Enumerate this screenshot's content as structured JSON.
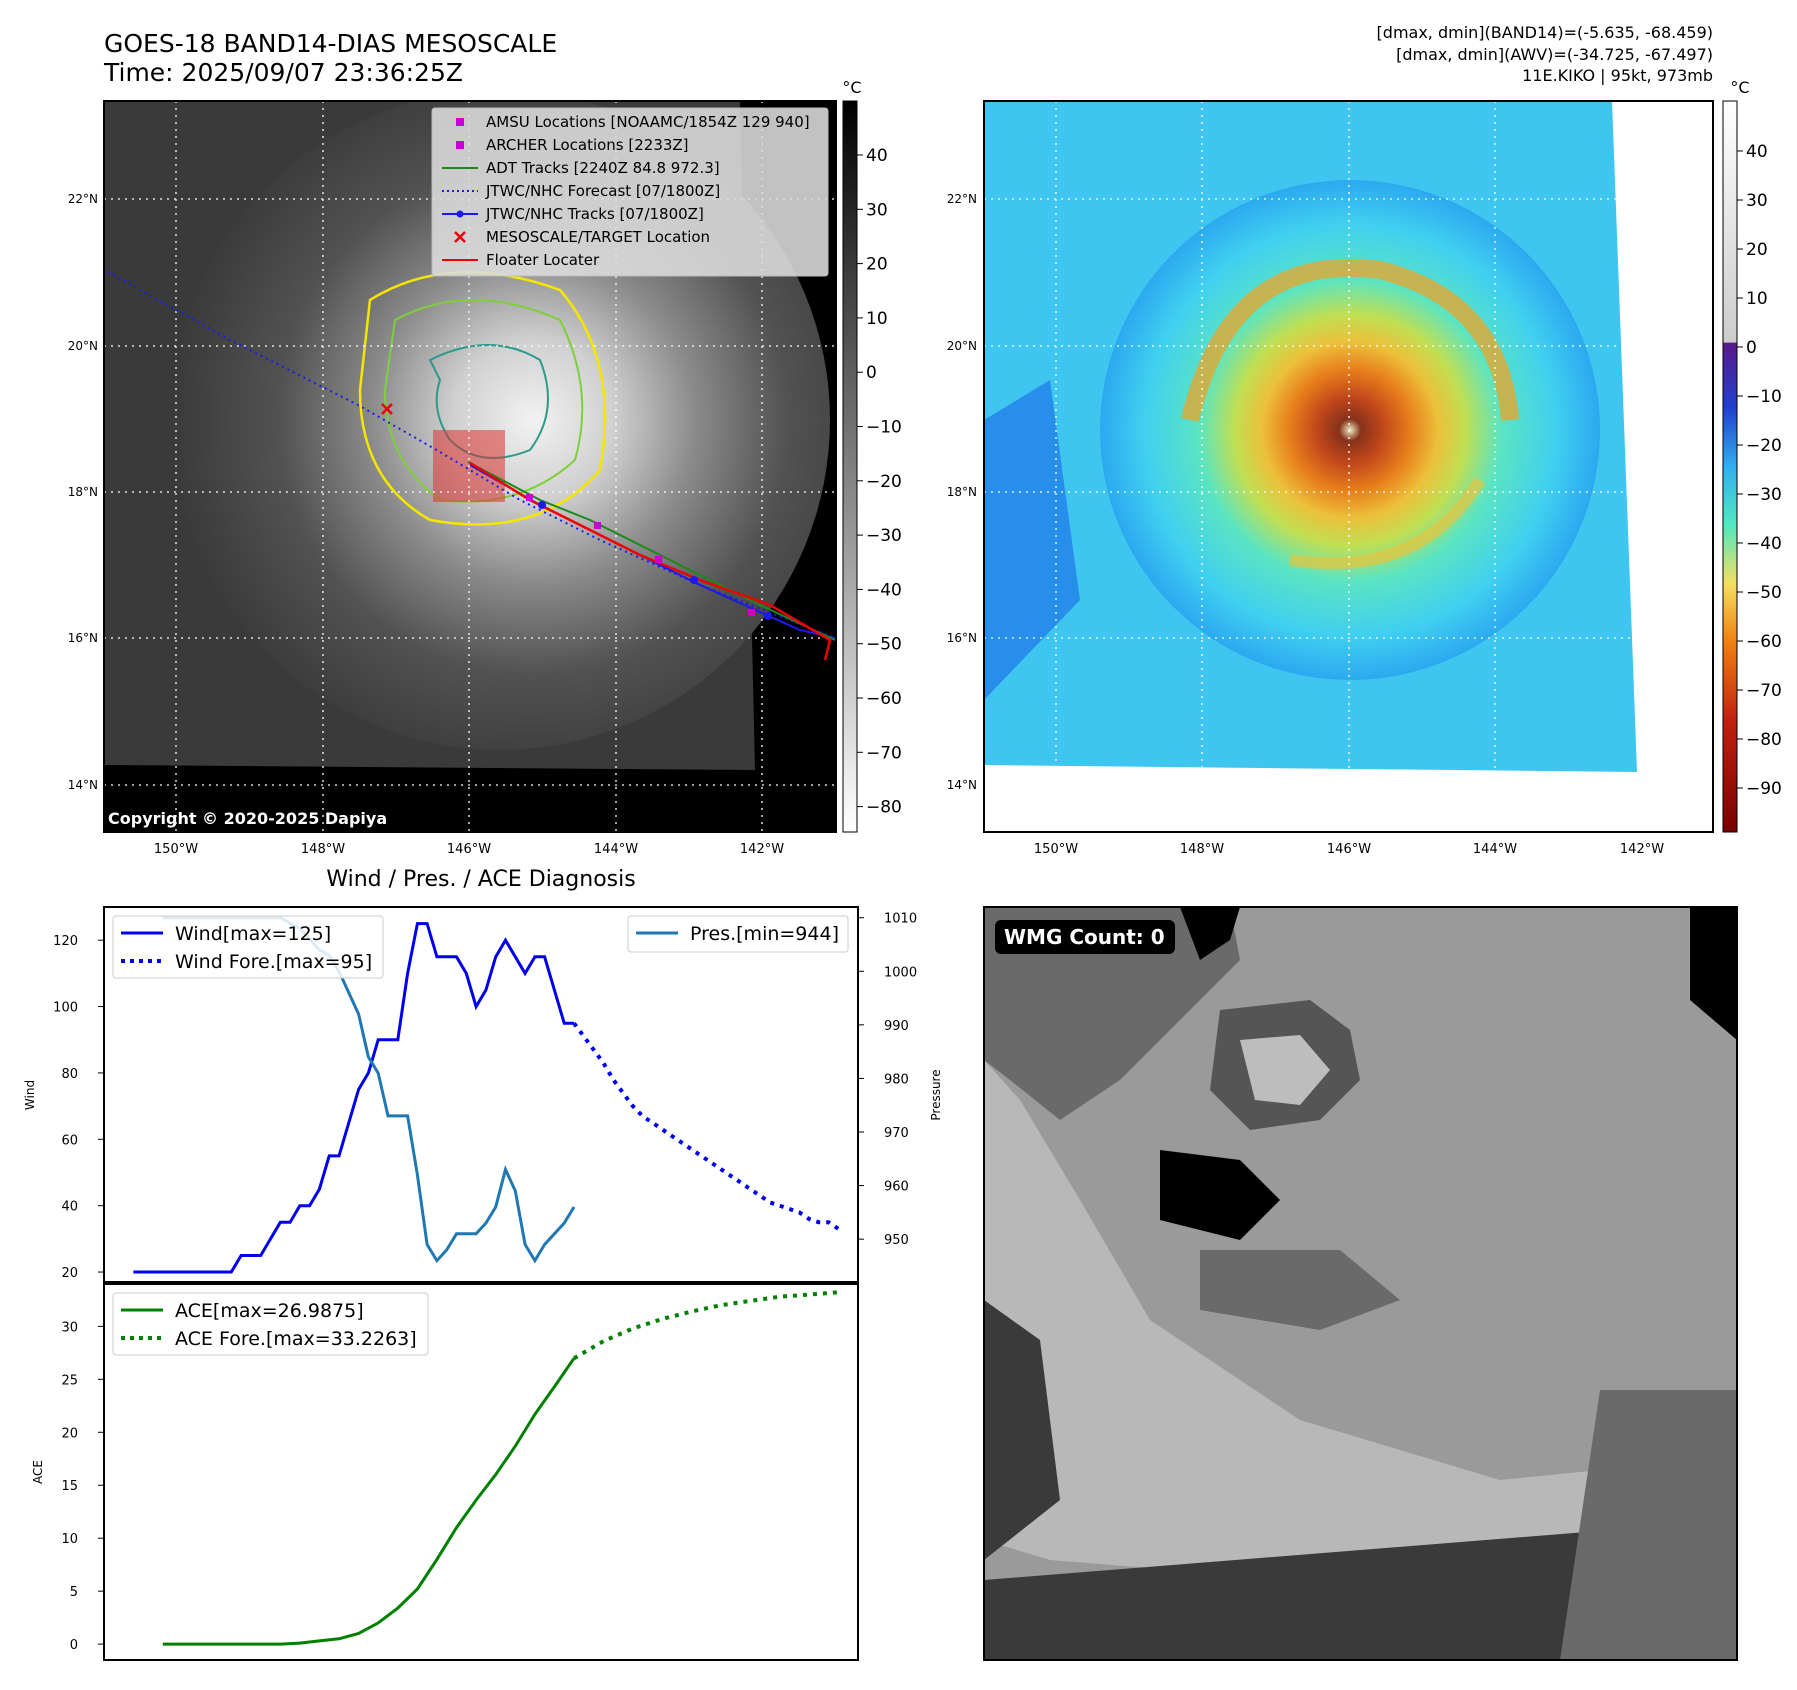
{
  "header": {
    "title": "GOES-18 BAND14-DIAS MESOSCALE",
    "time": "Time: 2025/09/07 23:36:25Z",
    "dmax_band14": "[dmax, dmin](BAND14)=(-5.635, -68.459)",
    "dmax_awv": "[dmax, dmin](AWV)=(-34.725, -67.497)",
    "storm": "11E.KIKO | 95kt, 973mb"
  },
  "map": {
    "lat_labels": [
      "22°N",
      "20°N",
      "18°N",
      "16°N",
      "14°N"
    ],
    "lon_labels": [
      "150°W",
      "148°W",
      "146°W",
      "144°W",
      "142°W"
    ],
    "copyright": "Copyright © 2020-2025 Dapiya",
    "legend": [
      {
        "label": "AMSU Locations [NOAAMC/1854Z 129 940]",
        "color": "#cc00cc",
        "kind": "square"
      },
      {
        "label": "ARCHER Locations [2233Z]",
        "color": "#cc00cc",
        "kind": "square"
      },
      {
        "label": "ADT Tracks [2240Z 84.8 972.3]",
        "color": "#1a8a1a",
        "kind": "line"
      },
      {
        "label": "JTWC/NHC Forecast [07/1800Z]",
        "color": "#1a1aee",
        "kind": "dotted"
      },
      {
        "label": "JTWC/NHC Tracks [07/1800Z]",
        "color": "#1a1aee",
        "kind": "line-dot"
      },
      {
        "label": "MESOSCALE/TARGET Location",
        "color": "#ee0000",
        "kind": "x"
      },
      {
        "label": "Floater Locater",
        "color": "#ee0000",
        "kind": "line"
      }
    ]
  },
  "colorbar_gray": {
    "unit": "°C",
    "ticks": [
      "40",
      "30",
      "20",
      "10",
      "0",
      "−10",
      "−20",
      "−30",
      "−40",
      "−50",
      "−60",
      "−70",
      "−80"
    ]
  },
  "colorbar_awv": {
    "unit": "°C",
    "ticks": [
      "40",
      "30",
      "20",
      "10",
      "0",
      "−10",
      "−20",
      "−30",
      "−40",
      "−50",
      "−60",
      "−70",
      "−80",
      "−90"
    ]
  },
  "wmg": {
    "label": "WMG Count: 0"
  },
  "chart_data": [
    {
      "type": "line",
      "title": "Wind / Pres. / ACE Diagnosis",
      "ylabel": "Wind",
      "y2label": "Pressure",
      "ylim": [
        17,
        130
      ],
      "y2lim": [
        942,
        1012
      ],
      "yticks": [
        "120",
        "100",
        "80",
        "60",
        "40",
        "20"
      ],
      "y2ticks": [
        "1010",
        "1000",
        "990",
        "980",
        "970",
        "960",
        "950"
      ],
      "series": [
        {
          "name": "Wind[max=125]",
          "color": "#0000ee",
          "style": "solid",
          "x": [
            0,
            1,
            2,
            3,
            4,
            5,
            6,
            7,
            8,
            9,
            10,
            11,
            12,
            13,
            14,
            15,
            16,
            17,
            18,
            19,
            20,
            21,
            22,
            23,
            24,
            25,
            26,
            27,
            28,
            29,
            30,
            31,
            32,
            33,
            34,
            35,
            36,
            37,
            38,
            39,
            40,
            41,
            42,
            43,
            44,
            45
          ],
          "values": [
            20,
            20,
            20,
            20,
            20,
            20,
            20,
            20,
            20,
            20,
            20,
            25,
            25,
            25,
            30,
            35,
            35,
            40,
            40,
            45,
            55,
            55,
            65,
            75,
            80,
            90,
            90,
            90,
            110,
            125,
            125,
            115,
            115,
            115,
            110,
            100,
            105,
            115,
            120,
            115,
            110,
            115,
            115,
            105,
            95,
            95
          ]
        },
        {
          "name": "Wind Fore.[max=95]",
          "color": "#0000ee",
          "style": "dotted",
          "x": [
            45,
            46,
            47,
            48,
            49,
            50,
            51,
            52,
            53,
            54,
            55,
            56,
            57,
            58,
            59,
            60,
            61,
            62,
            63,
            64,
            65,
            66,
            67,
            68,
            69,
            70,
            71,
            72
          ],
          "values": [
            95,
            91,
            87,
            83,
            78,
            74,
            70,
            67,
            65,
            63,
            61,
            59,
            57,
            55,
            53,
            51,
            49,
            47,
            45,
            43,
            41,
            40,
            39,
            38,
            36,
            35,
            35,
            33
          ]
        },
        {
          "name": "Pres.[min=944]",
          "color": "#1f77b4",
          "style": "solid",
          "axis": "right",
          "x": [
            3,
            4,
            5,
            6,
            7,
            8,
            9,
            10,
            11,
            12,
            13,
            14,
            15,
            16,
            17,
            18,
            19,
            20,
            21,
            22,
            23,
            24,
            25,
            26,
            27,
            28,
            29,
            30,
            31,
            32,
            33,
            34,
            35,
            36,
            37,
            38,
            39,
            40,
            41,
            42,
            43,
            44,
            45
          ],
          "values": [
            1010,
            1010,
            1010,
            1010,
            1010,
            1010,
            1010,
            1010,
            1010,
            1010,
            1010,
            1010,
            1010,
            1009,
            1008,
            1006,
            1004,
            1003,
            1000,
            996,
            992,
            984,
            981,
            973,
            973,
            973,
            962,
            949,
            946,
            948,
            951,
            951,
            951,
            953,
            956,
            963,
            959,
            949,
            946,
            949,
            951,
            953,
            956
          ]
        }
      ]
    },
    {
      "type": "line",
      "ylabel": "ACE",
      "ylim": [
        -1.5,
        34
      ],
      "yticks": [
        "30",
        "25",
        "20",
        "15",
        "10",
        "5",
        "0"
      ],
      "series": [
        {
          "name": "ACE[max=26.9875]",
          "color": "#008000",
          "style": "solid",
          "x": [
            3,
            5,
            7,
            9,
            11,
            13,
            15,
            17,
            19,
            21,
            23,
            25,
            27,
            29,
            31,
            33,
            35,
            37,
            39,
            41,
            43,
            45
          ],
          "values": [
            0,
            0,
            0,
            0,
            0,
            0,
            0,
            0.1,
            0.3,
            0.5,
            1.0,
            2.0,
            3.4,
            5.2,
            8.0,
            11.0,
            13.6,
            16.0,
            18.7,
            21.7,
            24.3,
            26.9875
          ]
        },
        {
          "name": "ACE Fore.[max=33.2263]",
          "color": "#008000",
          "style": "dotted",
          "x": [
            45,
            48,
            51,
            54,
            57,
            60,
            63,
            66,
            69,
            72
          ],
          "values": [
            26.9875,
            28.6,
            29.8,
            30.7,
            31.4,
            32.0,
            32.4,
            32.8,
            33.0,
            33.2263
          ]
        }
      ]
    }
  ]
}
